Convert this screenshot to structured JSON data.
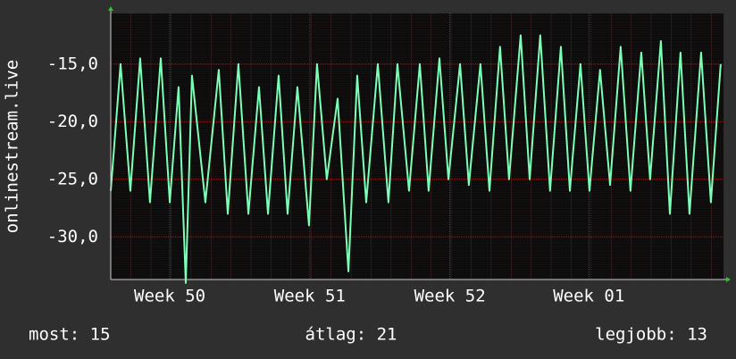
{
  "chart_data": {
    "type": "line",
    "y_label": "onlinestream.live",
    "x": [
      0,
      0.49,
      0.98,
      1.47,
      1.96,
      2.5,
      2.95,
      3.39,
      3.75,
      4.06,
      4.73,
      5.4,
      5.85,
      6.38,
      6.88,
      7.41,
      7.86,
      8.39,
      8.84,
      9.33,
      9.91,
      10.31,
      10.8,
      11.34,
      11.88,
      12.32,
      12.77,
      13.35,
      13.88,
      14.33,
      14.91,
      15.45,
      15.89,
      16.43,
      16.88,
      17.46,
      17.9,
      18.48,
      18.93,
      19.46,
      19.91,
      20.49,
      20.94,
      21.47,
      21.96,
      22.5,
      22.95,
      23.48,
      23.93,
      24.46,
      24.96,
      25.49,
      25.98,
      26.52,
      26.96,
      27.5,
      27.95,
      28.48,
      28.93,
      29.51,
      30,
      30.49
    ],
    "values": [
      -26,
      -15,
      -26,
      -14.5,
      -27,
      -14.5,
      -27,
      -17,
      -34,
      -16,
      -27,
      -15.5,
      -28,
      -15,
      -28,
      -17,
      -28,
      -16,
      -28,
      -17,
      -29,
      -15,
      -25,
      -18,
      -33,
      -16,
      -27,
      -15,
      -27,
      -15,
      -26,
      -15,
      -26,
      -14.5,
      -25,
      -15,
      -25.5,
      -15,
      -26,
      -13.5,
      -25,
      -12.5,
      -25,
      -12.5,
      -26,
      -13.5,
      -26,
      -15,
      -26,
      -15.5,
      -25.5,
      -13.5,
      -26,
      -14,
      -25,
      -13,
      -28,
      -14,
      -28,
      -14,
      -27,
      -15
    ],
    "color": "#7dffb8",
    "xlim": [
      0,
      30.63
    ],
    "ylim": [
      -33.7,
      -10.6
    ],
    "xticks": [
      {
        "value": 2.95,
        "label": "Week 50"
      },
      {
        "value": 9.95,
        "label": "Week 51"
      },
      {
        "value": 16.95,
        "label": "Week 52"
      },
      {
        "value": 23.9,
        "label": "Week 01"
      }
    ],
    "yticks": [
      {
        "value": -15,
        "label": "-15,0"
      },
      {
        "value": -20,
        "label": "-20,0"
      },
      {
        "value": -25,
        "label": "-25,0"
      },
      {
        "value": -30,
        "label": "-30,0"
      }
    ],
    "grid": true,
    "footer": [
      "most: 15",
      "átlag: 21",
      "legjobb: 13"
    ]
  }
}
